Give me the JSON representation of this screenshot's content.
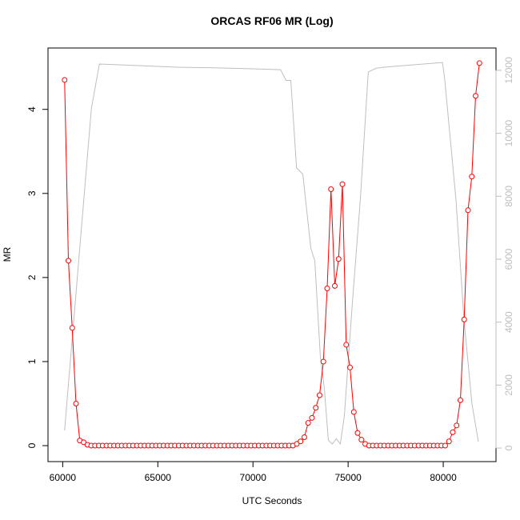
{
  "chart_data": {
    "type": "line",
    "title": "ORCAS RF06 MR (Log)",
    "x_label": "UTC Seconds",
    "y_label": "MR",
    "xlim": [
      59228,
      82772
    ],
    "xticks": [
      60000,
      65000,
      70000,
      75000,
      80000
    ],
    "ylim": [
      -0.19,
      4.73
    ],
    "yticks": [
      0,
      1,
      2,
      3,
      4
    ],
    "y2lim": [
      -430,
      12710
    ],
    "y2ticks": [
      0,
      2000,
      4000,
      6000,
      8000,
      10000,
      12000
    ],
    "series": [
      {
        "color": "#ff0000",
        "markers": true,
        "x": [
          60100,
          60300,
          60500,
          60700,
          60900,
          61100,
          61300,
          61500,
          61700,
          61900,
          62100,
          62300,
          62500,
          62700,
          62900,
          63100,
          63300,
          63500,
          63700,
          63900,
          64100,
          64300,
          64500,
          64700,
          64900,
          65100,
          65300,
          65500,
          65700,
          65900,
          66100,
          66300,
          66500,
          66700,
          66900,
          67100,
          67300,
          67500,
          67700,
          67900,
          68100,
          68300,
          68500,
          68700,
          68900,
          69100,
          69300,
          69500,
          69700,
          69900,
          70100,
          70300,
          70500,
          70700,
          70900,
          71100,
          71300,
          71500,
          71700,
          71900,
          72100,
          72300,
          72500,
          72700,
          72900,
          73100,
          73300,
          73500,
          73700,
          73900,
          74100,
          74300,
          74500,
          74700,
          74900,
          75100,
          75300,
          75500,
          75700,
          75900,
          76100,
          76300,
          76500,
          76700,
          76900,
          77100,
          77300,
          77500,
          77700,
          77900,
          78100,
          78300,
          78500,
          78700,
          78900,
          79100,
          79300,
          79500,
          79700,
          79900,
          80100,
          80300,
          80500,
          80700,
          80900,
          81100,
          81300,
          81500,
          81700,
          81900
        ],
        "values": [
          4.35,
          2.2,
          1.4,
          0.5,
          0.06,
          0.04,
          0.01,
          0,
          0,
          0,
          0,
          0,
          0,
          0,
          0,
          0,
          0,
          0,
          0,
          0,
          0,
          0,
          0,
          0,
          0,
          0,
          0,
          0,
          0,
          0,
          0,
          0,
          0,
          0,
          0,
          0,
          0,
          0,
          0,
          0,
          0,
          0,
          0,
          0,
          0,
          0,
          0,
          0,
          0,
          0,
          0,
          0,
          0,
          0,
          0,
          0,
          0,
          0,
          0,
          0,
          0,
          0.02,
          0.05,
          0.1,
          0.27,
          0.33,
          0.45,
          0.6,
          1.0,
          1.87,
          3.05,
          1.9,
          2.22,
          3.11,
          1.2,
          0.93,
          0.4,
          0.15,
          0.07,
          0.02,
          0,
          0,
          0,
          0,
          0,
          0,
          0,
          0,
          0,
          0,
          0,
          0,
          0,
          0,
          0,
          0,
          0,
          0,
          0,
          0,
          0,
          0.05,
          0.16,
          0.24,
          0.54,
          1.5,
          2.8,
          3.2,
          4.16,
          4.55
        ]
      },
      {
        "color": "#bebebe",
        "axis": "y2",
        "markers": false,
        "x": [
          60100,
          61510,
          61930,
          64000,
          66000,
          68000,
          70000,
          71450,
          71740,
          71990,
          72290,
          72620,
          73040,
          73250,
          73540,
          73750,
          73960,
          74170,
          74380,
          74590,
          74800,
          75220,
          75640,
          76060,
          76480,
          76900,
          78500,
          79960,
          80080,
          80670,
          81090,
          81510,
          81845
        ],
        "values": [
          560,
          10800,
          12200,
          12150,
          12100,
          12080,
          12050,
          12020,
          11680,
          11680,
          8900,
          8700,
          6350,
          5950,
          2920,
          1900,
          250,
          130,
          300,
          130,
          1000,
          4580,
          7880,
          11950,
          12070,
          12100,
          12180,
          12250,
          11700,
          7880,
          4070,
          1400,
          200
        ]
      }
    ]
  }
}
